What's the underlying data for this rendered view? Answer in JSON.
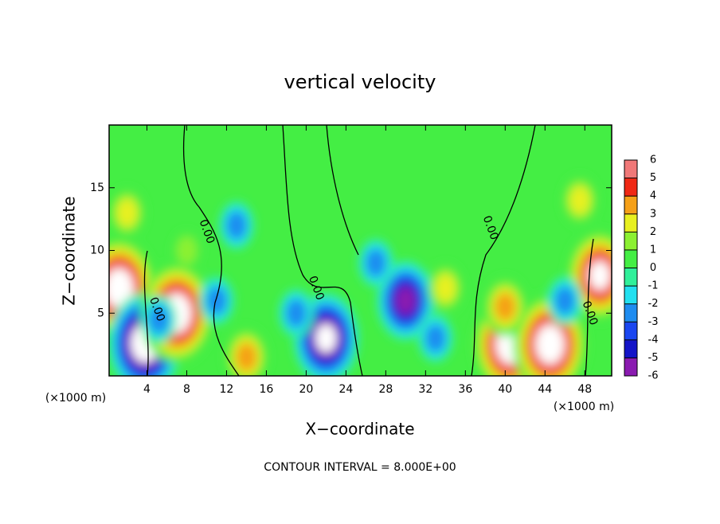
{
  "chart_data": {
    "type": "contour",
    "title": "vertical velocity",
    "x_label": "X−coordinate",
    "y_label": "Z−coordinate",
    "x_unit": "(×1000 m)",
    "footer": "CONTOUR INTERVAL = 8.000E+00",
    "xlim": [
      0.2,
      50.7
    ],
    "ylim": [
      0,
      20
    ],
    "xticks": [
      4,
      8,
      12,
      16,
      20,
      24,
      28,
      32,
      36,
      40,
      44,
      48
    ],
    "yticks": [
      5,
      10,
      15
    ],
    "background": "#44ee44",
    "colorbar": {
      "ticks": [
        6,
        5,
        4,
        3,
        2,
        1,
        0,
        -1,
        -2,
        -3,
        -4,
        -5,
        -6
      ],
      "colors": [
        "#8a1bb0",
        "#1414c8",
        "#1a46f0",
        "#1e8cf0",
        "#22e0f0",
        "#30f09a",
        "#44ee44",
        "#8cf032",
        "#e8f020",
        "#f5a018",
        "#f02814",
        "#f07878"
      ]
    },
    "features": [
      {
        "x": 1.2,
        "z": 7,
        "value": 8
      },
      {
        "x": 3.8,
        "z": 2.6,
        "value": -8
      },
      {
        "x": 7,
        "z": 5,
        "value": 8
      },
      {
        "x": 5.2,
        "z": 4.5,
        "value": -3
      },
      {
        "x": 13,
        "z": 12,
        "value": -3
      },
      {
        "x": 22,
        "z": 3,
        "value": -7
      },
      {
        "x": 30,
        "z": 6,
        "value": -6
      },
      {
        "x": 34,
        "z": 7,
        "value": 3
      },
      {
        "x": 40.5,
        "z": 2.5,
        "value": 8
      },
      {
        "x": 44.5,
        "z": 2.5,
        "value": 8
      },
      {
        "x": 40,
        "z": 5.5,
        "value": 4
      },
      {
        "x": 49.5,
        "z": 8,
        "value": 7
      },
      {
        "x": 2,
        "z": 13,
        "value": 3
      },
      {
        "x": 47.5,
        "z": 14,
        "value": 3
      },
      {
        "x": 27,
        "z": 9,
        "value": -3
      },
      {
        "x": 19,
        "z": 5,
        "value": -3
      },
      {
        "x": 14,
        "z": 1.5,
        "value": 4
      },
      {
        "x": 8,
        "z": 10,
        "value": 2
      },
      {
        "x": 11,
        "z": 6,
        "value": -3
      },
      {
        "x": 46,
        "z": 6,
        "value": -3
      },
      {
        "x": 33,
        "z": 3,
        "value": -3
      }
    ],
    "contour_labels": [
      {
        "x": 10,
        "z": 11.5,
        "text": "0.00"
      },
      {
        "x": 5,
        "z": 5.3,
        "text": "0.00"
      },
      {
        "x": 21,
        "z": 7,
        "text": "0.00"
      },
      {
        "x": 38.5,
        "z": 11.8,
        "text": "0.00"
      },
      {
        "x": 48.5,
        "z": 5,
        "text": "0.00"
      }
    ]
  }
}
